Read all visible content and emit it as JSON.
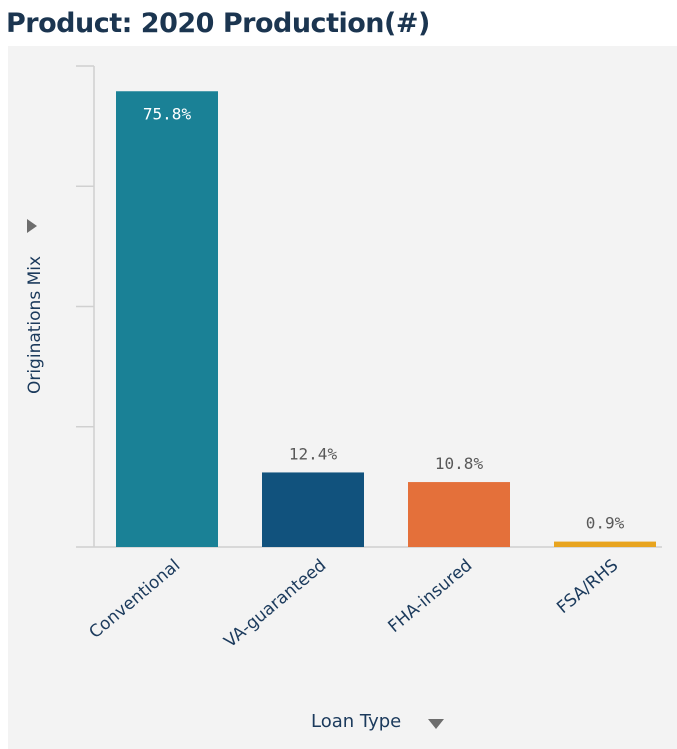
{
  "title": "Product: 2020 Production(#)",
  "y_axis": {
    "label": "Originations Mix",
    "menu_icon": "caret-right-icon"
  },
  "x_axis": {
    "label": "Loan Type",
    "menu_icon": "caret-down-icon"
  },
  "chart_data": {
    "type": "bar",
    "title": "Product: 2020 Production(#)",
    "xlabel": "Loan Type",
    "ylabel": "Originations Mix",
    "categories": [
      "Conventional",
      "VA-guaranteed",
      "FHA-insured",
      "FSA/RHS"
    ],
    "values": [
      75.8,
      12.4,
      10.8,
      0.9
    ],
    "labels": [
      "75.8%",
      "12.4%",
      "10.8%",
      "0.9%"
    ],
    "colors": [
      "#1a8196",
      "#11527d",
      "#e4703a",
      "#e8a41f"
    ],
    "ylim": [
      0,
      80
    ],
    "y_ticks": [
      0,
      20,
      40,
      60,
      80
    ],
    "grid": false,
    "legend": "none"
  }
}
